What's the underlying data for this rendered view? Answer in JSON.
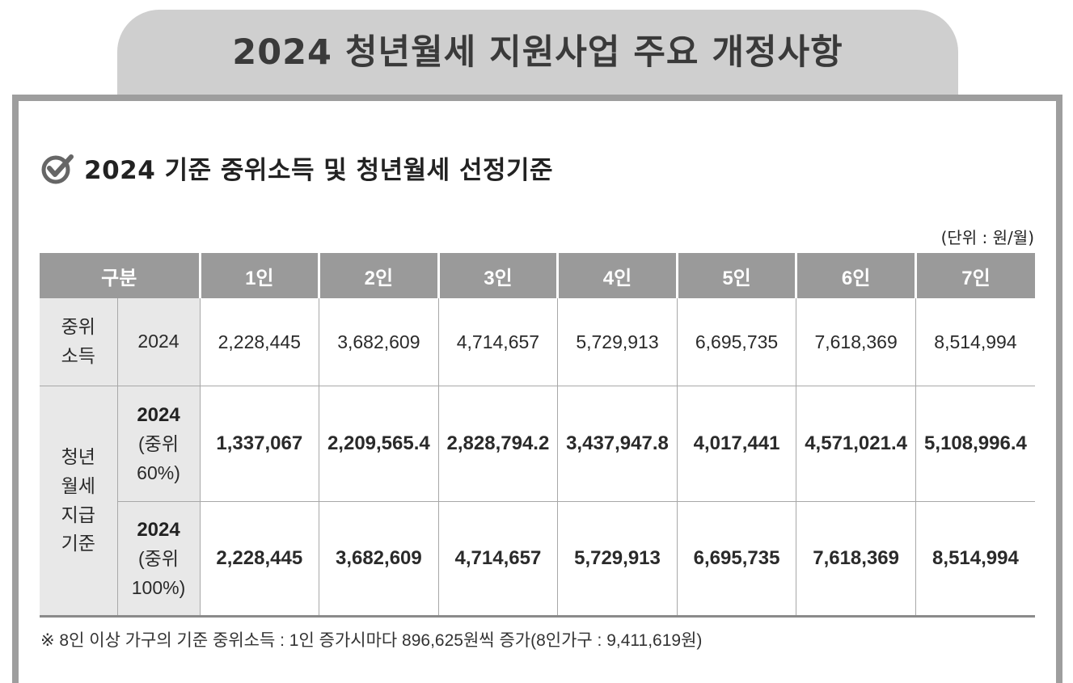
{
  "title": "2024 청년월세 지원사업 주요 개정사항",
  "section_title": "2024 기준 중위소득 및 청년월세 선정기준",
  "unit": "(단위 : 원/월)",
  "table": {
    "header_label": "구분",
    "columns": [
      "1인",
      "2인",
      "3인",
      "4인",
      "5인",
      "6인",
      "7인"
    ],
    "median": {
      "label_line1": "중위",
      "label_line2": "소득",
      "year": "2024",
      "values": [
        "2,228,445",
        "3,682,609",
        "4,714,657",
        "5,729,913",
        "6,695,735",
        "7,618,369",
        "8,514,994"
      ]
    },
    "criteria": {
      "label_lines": [
        "청년",
        "월세",
        "지급",
        "기준"
      ],
      "rows": [
        {
          "year": "2024",
          "sub1": "(중위",
          "sub2": "60%)",
          "values": [
            "1,337,067",
            "2,209,565.4",
            "2,828,794.2",
            "3,437,947.8",
            "4,017,441",
            "4,571,021.4",
            "5,108,996.4"
          ]
        },
        {
          "year": "2024",
          "sub1": "(중위",
          "sub2": "100%)",
          "values": [
            "2,228,445",
            "3,682,609",
            "4,714,657",
            "5,729,913",
            "6,695,735",
            "7,618,369",
            "8,514,994"
          ]
        }
      ]
    }
  },
  "note": "※ 8인 이상 가구의 기준 중위소득 : 1인 증가시마다 896,625원씩 증가(8인가구 : 9,411,619원)",
  "colors": {
    "tab": "#cfcfcf",
    "frame": "#9e9e9e",
    "header": "#9a9a9a",
    "label_bg": "#e8e8e8"
  }
}
